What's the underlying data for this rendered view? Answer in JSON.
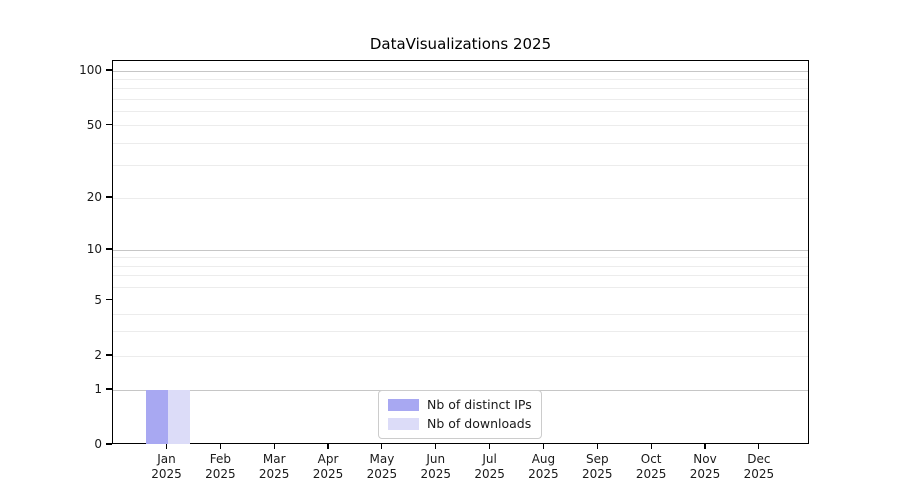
{
  "window": {
    "background": "#ffffff"
  },
  "chart_data": {
    "type": "bar",
    "title": "DataVisualizations 2025",
    "categories": [
      "Jan 2025",
      "Feb 2025",
      "Mar 2025",
      "Apr 2025",
      "May 2025",
      "Jun 2025",
      "Jul 2025",
      "Aug 2025",
      "Sep 2025",
      "Oct 2025",
      "Nov 2025",
      "Dec 2025"
    ],
    "series": [
      {
        "name": "Nb of distinct IPs",
        "color": "#a8a8f2",
        "values": [
          1,
          0,
          0,
          0,
          0,
          0,
          0,
          0,
          0,
          0,
          0,
          0
        ]
      },
      {
        "name": "Nb of downloads",
        "color": "#dcdcf8",
        "values": [
          1,
          0,
          0,
          0,
          0,
          0,
          0,
          0,
          0,
          0,
          0,
          0
        ]
      }
    ],
    "xlabel": "",
    "ylabel": "",
    "y_scale": "symlog",
    "ylim": [
      0,
      114
    ],
    "y_ticks": [
      0,
      1,
      2,
      5,
      10,
      20,
      50,
      100
    ],
    "y_major_gridlines": [
      1,
      10,
      100
    ],
    "y_minor_gridlines": [
      2,
      3,
      4,
      6,
      7,
      8,
      9,
      20,
      30,
      40,
      50,
      60,
      70,
      80,
      90
    ],
    "grid": "horizontal major and minor gridlines on",
    "legend": {
      "position": "lower center",
      "entries": [
        "Nb of distinct IPs",
        "Nb of downloads"
      ]
    },
    "colors": {
      "bar_distinct_ips": "#a8a8f2",
      "bar_downloads": "#dcdcf8",
      "major_gridline": "#c6c6c6",
      "minor_gridline": "#ececec",
      "spine": "#000000",
      "text": "#1a1a1a",
      "legend_border": "#cccccc",
      "background": "#ffffff"
    }
  }
}
